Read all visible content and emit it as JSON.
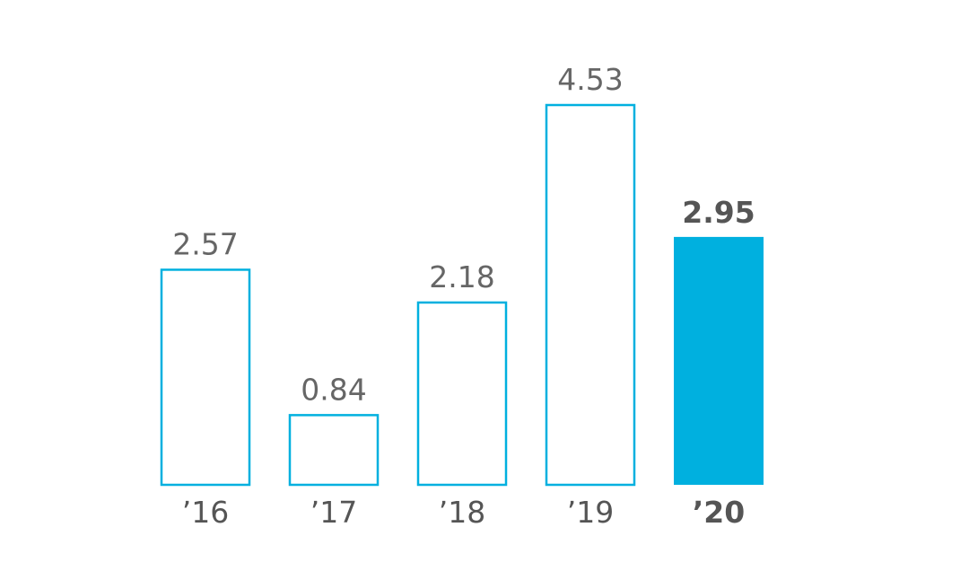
{
  "chart_data": {
    "type": "bar",
    "categories": [
      "’16",
      "’17",
      "’18",
      "’19",
      "’20"
    ],
    "values": [
      2.57,
      0.84,
      2.18,
      4.53,
      2.95
    ],
    "value_labels": [
      "2.57",
      "0.84",
      "2.18",
      "4.53",
      "2.95"
    ],
    "highlighted_index": 4,
    "title": "",
    "xlabel": "",
    "ylabel": "",
    "ylim": [
      0,
      4.53
    ],
    "grid": false,
    "legend": "none",
    "colors": {
      "accent": "#00b0df",
      "text": "#666666",
      "text_emphasis": "#555555",
      "background": "#ffffff"
    }
  }
}
